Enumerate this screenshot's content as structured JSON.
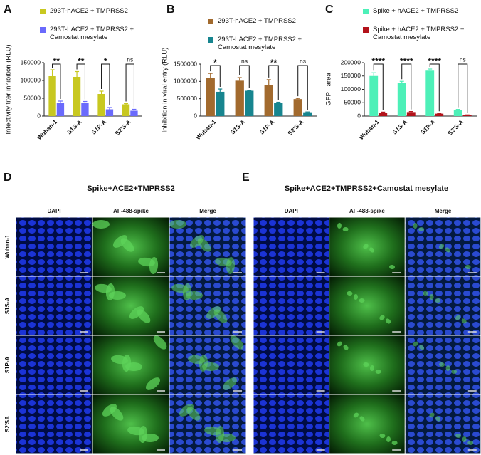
{
  "chart_data": [
    {
      "type": "bar",
      "panel": "A",
      "ylabel": "Infectivity titer inhibition (RLU)",
      "categories": [
        "Wuhan-1",
        "S1S-A",
        "S1P-A",
        "S2'S-A"
      ],
      "series": [
        {
          "name": "293T-hACE2 + TMPRSS2",
          "color": "#c8c820",
          "values": [
            112000,
            110000,
            62000,
            33000
          ],
          "errors": [
            18000,
            15000,
            8000,
            2000
          ]
        },
        {
          "name": "293T-hACE2 + TMPRSS2 + Camostat mesylate",
          "color": "#6a6afc",
          "values": [
            36000,
            36000,
            19000,
            15000
          ],
          "errors": [
            6000,
            5000,
            5000,
            4000
          ]
        }
      ],
      "significance": [
        "**",
        "**",
        "*",
        "ns"
      ],
      "ylim": [
        0,
        150000
      ],
      "yticks": [
        0,
        50000,
        100000,
        150000
      ]
    },
    {
      "type": "bar",
      "panel": "B",
      "ylabel": "Inhibition in viral entry (RLU)",
      "categories": [
        "Wuhan-1",
        "S1S-A",
        "S1P-A",
        "S2'S-A"
      ],
      "series": [
        {
          "name": "293T-hACE2 + TMPRSS2",
          "color": "#a26a2e",
          "values": [
            1100000,
            1020000,
            900000,
            490000
          ],
          "errors": [
            130000,
            90000,
            150000,
            20000
          ]
        },
        {
          "name": "293T-hACE2 + TMPRSS2 + Camostat mesylate",
          "color": "#17858f",
          "values": [
            700000,
            730000,
            390000,
            110000
          ],
          "errors": [
            80000,
            10000,
            10000,
            10000
          ]
        }
      ],
      "significance": [
        "*",
        "ns",
        "**",
        "ns"
      ],
      "ylim": [
        0,
        1500000
      ],
      "yticks": [
        0,
        500000,
        1000000,
        1500000
      ]
    },
    {
      "type": "bar",
      "panel": "C",
      "ylabel": "GFP⁺ area",
      "categories": [
        "Wuhan-1",
        "S1S-A",
        "S1P-A",
        "S2'S-A"
      ],
      "series": [
        {
          "name": "Spike + hACE2 + TMPRSS2",
          "color": "#4df0b8",
          "values": [
            150000,
            125000,
            170000,
            24000
          ],
          "errors": [
            12000,
            5000,
            6000,
            1000
          ]
        },
        {
          "name": "Spike + hACE2 + TMPRSS2 + Camostat mesylate",
          "color": "#b3121a",
          "values": [
            13000,
            15000,
            9000,
            4000
          ],
          "errors": [
            2000,
            2000,
            1000,
            500
          ]
        }
      ],
      "significance": [
        "****",
        "****",
        "****",
        "ns"
      ],
      "ylim": [
        0,
        200000
      ],
      "yticks": [
        0,
        50000,
        100000,
        150000,
        200000
      ]
    }
  ],
  "micrographs": [
    {
      "panel": "D",
      "title": "Spike+ACE2+TMPRSS2",
      "columns": [
        "DAPI",
        "AF-488-spike",
        "Merge"
      ],
      "rows": [
        "Wuhan-1",
        "S1S-A",
        "S1P-A",
        "S2'SA"
      ]
    },
    {
      "panel": "E",
      "title": "Spike+ACE2+TMPRSS2+Camostat mesylate",
      "columns": [
        "DAPI",
        "AF-488-spike",
        "Merge"
      ]
    }
  ]
}
